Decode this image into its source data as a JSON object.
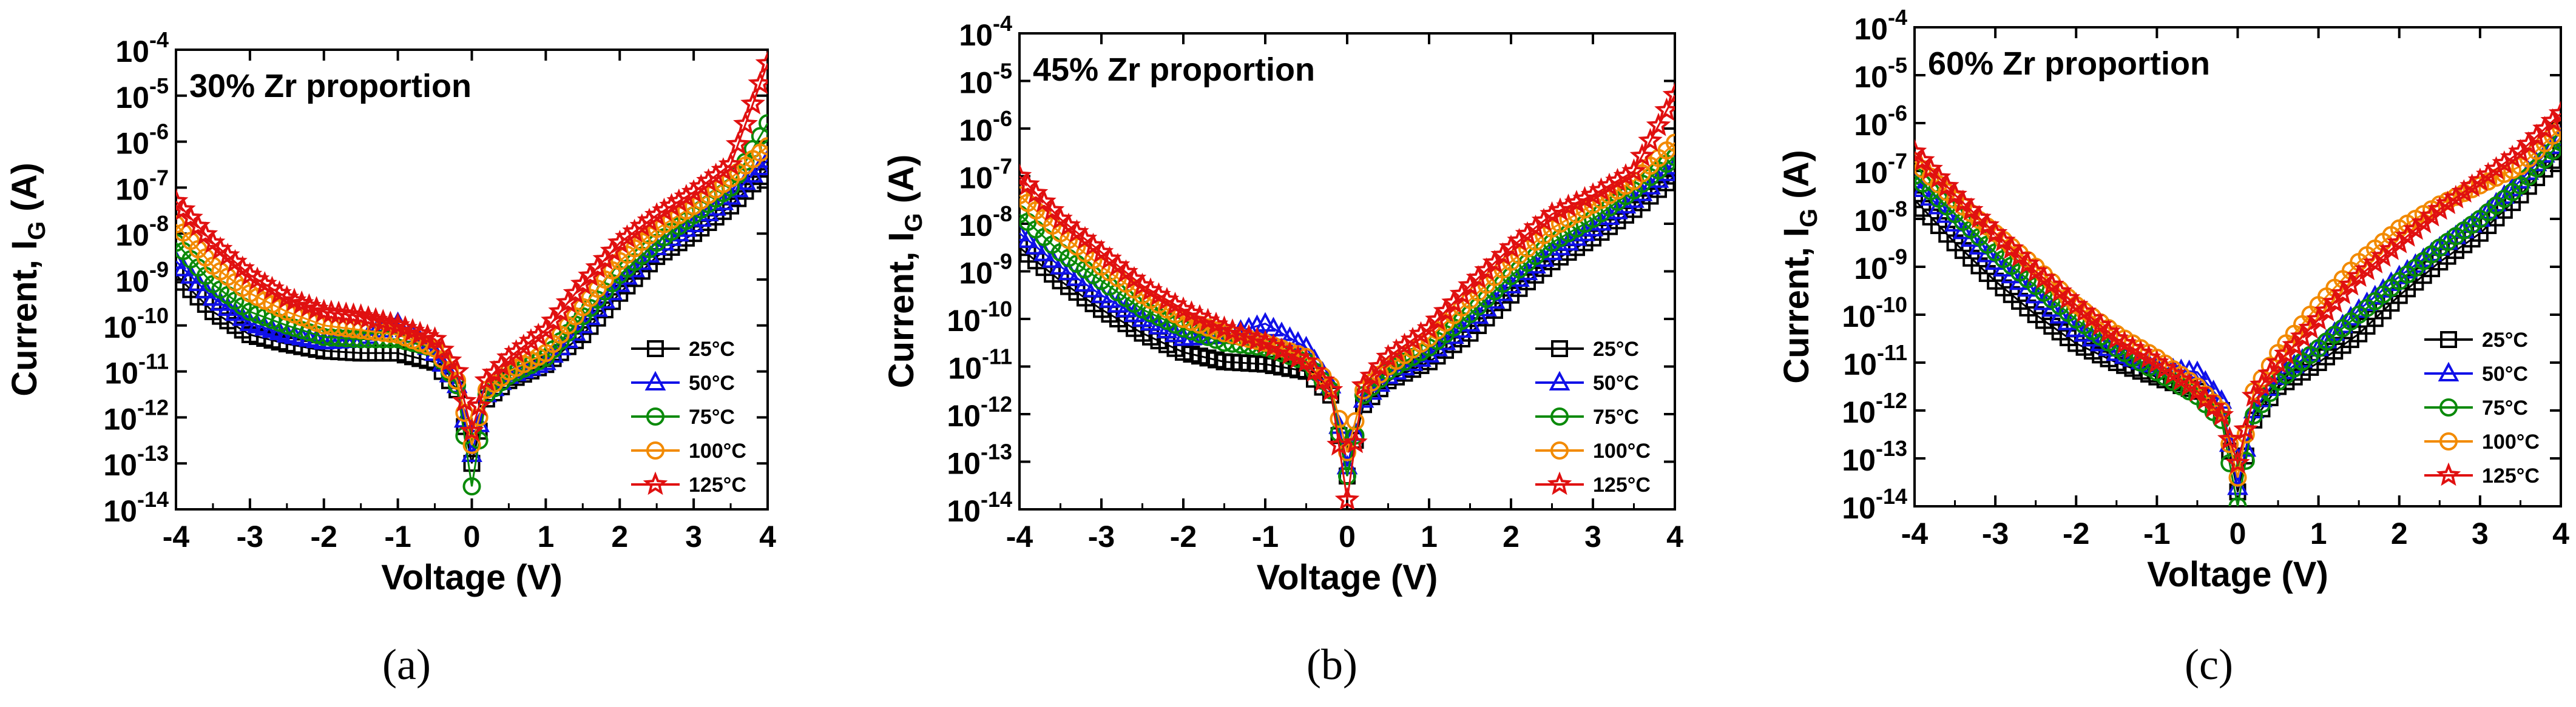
{
  "chart_data": [
    {
      "type": "line",
      "title": "30% Zr proportion",
      "caption": "(a)",
      "xlabel": "Voltage (V)",
      "ylabel_main": "Current, I",
      "ylabel_sub": "G",
      "ylabel_unit": " (A)",
      "xlim": [
        -4,
        4
      ],
      "ylim_exp": [
        -14,
        -4
      ],
      "xticks": [
        "-4",
        "-3",
        "-2",
        "-1",
        "0",
        "1",
        "2",
        "3",
        "4"
      ],
      "yticks": [
        {
          "base": "10",
          "exp": "-14"
        },
        {
          "base": "10",
          "exp": "-13"
        },
        {
          "base": "10",
          "exp": "-12"
        },
        {
          "base": "10",
          "exp": "-11"
        },
        {
          "base": "10",
          "exp": "-10"
        },
        {
          "base": "10",
          "exp": "-9"
        },
        {
          "base": "10",
          "exp": "-8"
        },
        {
          "base": "10",
          "exp": "-7"
        },
        {
          "base": "10",
          "exp": "-6"
        },
        {
          "base": "10",
          "exp": "-5"
        },
        {
          "base": "10",
          "exp": "-4"
        }
      ],
      "x": [
        -4,
        -3.5,
        -3,
        -2.5,
        -2,
        -1.5,
        -1,
        -0.5,
        -0.2,
        0,
        0.2,
        0.5,
        1,
        1.5,
        2,
        2.5,
        3,
        3.5,
        4
      ],
      "series": [
        {
          "name": "25°C",
          "symbol": "square",
          "color": "#000000",
          "log_values": [
            -8.9,
            -9.7,
            -10.2,
            -10.4,
            -10.55,
            -10.6,
            -10.6,
            -10.8,
            -11.4,
            -13,
            -11.6,
            -11.2,
            -10.85,
            -10.2,
            -9.3,
            -8.5,
            -8.0,
            -7.4,
            -6.6
          ]
        },
        {
          "name": "50°C",
          "symbol": "triangle",
          "color": "#1010e8",
          "log_values": [
            -8.6,
            -9.4,
            -9.95,
            -10.2,
            -10.35,
            -10.3,
            -9.95,
            -10.6,
            -11.3,
            -12.8,
            -11.5,
            -11.1,
            -10.8,
            -10.0,
            -9.1,
            -8.3,
            -7.8,
            -7.2,
            -6.4
          ]
        },
        {
          "name": "75°C",
          "symbol": "circle",
          "color": "#0a8a0a",
          "log_values": [
            -8.2,
            -9.1,
            -9.7,
            -10.0,
            -10.25,
            -10.3,
            -10.3,
            -10.5,
            -11.3,
            -13.5,
            -11.5,
            -11.1,
            -10.7,
            -9.8,
            -8.9,
            -8.2,
            -7.6,
            -7.0,
            -5.6
          ]
        },
        {
          "name": "100°C",
          "symbol": "circle",
          "color": "#f28a00",
          "log_values": [
            -7.8,
            -8.7,
            -9.3,
            -9.7,
            -10.0,
            -10.1,
            -10.2,
            -10.5,
            -11.2,
            -12.6,
            -11.4,
            -11.0,
            -10.6,
            -9.6,
            -8.6,
            -7.9,
            -7.4,
            -6.8,
            -6.1
          ]
        },
        {
          "name": "125°C",
          "symbol": "star",
          "color": "#e01010",
          "log_values": [
            -7.3,
            -8.2,
            -8.9,
            -9.4,
            -9.7,
            -9.8,
            -10.0,
            -10.3,
            -11.0,
            -12.3,
            -11.2,
            -10.7,
            -10.1,
            -9.1,
            -8.2,
            -7.6,
            -7.1,
            -6.5,
            -4.3
          ]
        }
      ]
    },
    {
      "type": "line",
      "title": "45% Zr proportion",
      "caption": "(b)",
      "xlabel": "Voltage (V)",
      "ylabel_main": "Current, I",
      "ylabel_sub": "G",
      "ylabel_unit": " (A)",
      "xlim": [
        -4,
        4
      ],
      "ylim_exp": [
        -14,
        -4
      ],
      "xticks": [
        "-4",
        "-3",
        "-2",
        "-1",
        "0",
        "1",
        "2",
        "3",
        "4"
      ],
      "yticks": [
        {
          "base": "10",
          "exp": "-14"
        },
        {
          "base": "10",
          "exp": "-13"
        },
        {
          "base": "10",
          "exp": "-12"
        },
        {
          "base": "10",
          "exp": "-11"
        },
        {
          "base": "10",
          "exp": "-10"
        },
        {
          "base": "10",
          "exp": "-9"
        },
        {
          "base": "10",
          "exp": "-8"
        },
        {
          "base": "10",
          "exp": "-7"
        },
        {
          "base": "10",
          "exp": "-6"
        },
        {
          "base": "10",
          "exp": "-5"
        },
        {
          "base": "10",
          "exp": "-4"
        }
      ],
      "x": [
        -4,
        -3.5,
        -3,
        -2.5,
        -2,
        -1.5,
        -1,
        -0.5,
        -0.2,
        0,
        0.2,
        0.5,
        1,
        1.5,
        2,
        2.5,
        3,
        3.5,
        4
      ],
      "series": [
        {
          "name": "25°C",
          "symbol": "square",
          "color": "#000000",
          "log_values": [
            -8.5,
            -9.2,
            -9.8,
            -10.3,
            -10.7,
            -10.9,
            -10.95,
            -11.1,
            -11.6,
            -13.3,
            -11.8,
            -11.3,
            -10.9,
            -10.3,
            -9.5,
            -8.8,
            -8.3,
            -7.7,
            -7.0
          ]
        },
        {
          "name": "50°C",
          "symbol": "triangle",
          "color": "#1010e8",
          "log_values": [
            -8.2,
            -8.9,
            -9.5,
            -10.0,
            -10.4,
            -10.35,
            -10.1,
            -10.6,
            -11.4,
            -13.1,
            -11.7,
            -11.2,
            -10.75,
            -10.1,
            -9.3,
            -8.6,
            -8.1,
            -7.5,
            -6.8
          ]
        },
        {
          "name": "75°C",
          "symbol": "circle",
          "color": "#0a8a0a",
          "log_values": [
            -7.8,
            -8.6,
            -9.2,
            -9.8,
            -10.2,
            -10.5,
            -10.6,
            -10.9,
            -11.5,
            -13.3,
            -11.6,
            -11.1,
            -10.6,
            -9.9,
            -9.1,
            -8.4,
            -7.9,
            -7.3,
            -6.6
          ]
        },
        {
          "name": "100°C",
          "symbol": "circle",
          "color": "#f28a00",
          "log_values": [
            -7.4,
            -8.2,
            -8.9,
            -9.5,
            -10.0,
            -10.3,
            -10.5,
            -10.8,
            -11.4,
            -12.8,
            -11.5,
            -11.0,
            -10.4,
            -9.6,
            -8.8,
            -8.1,
            -7.6,
            -7.1,
            -6.3
          ]
        },
        {
          "name": "125°C",
          "symbol": "star",
          "color": "#e01010",
          "log_values": [
            -7.0,
            -7.9,
            -8.6,
            -9.3,
            -9.8,
            -10.2,
            -10.5,
            -10.9,
            -11.5,
            -13.8,
            -11.4,
            -10.8,
            -10.2,
            -9.3,
            -8.5,
            -7.8,
            -7.4,
            -6.9,
            -5.3
          ]
        }
      ]
    },
    {
      "type": "line",
      "title": "60% Zr proportion",
      "caption": "(c)",
      "xlabel": "Voltage (V)",
      "ylabel_main": "Current, I",
      "ylabel_sub": "G",
      "ylabel_unit": " (A)",
      "xlim": [
        -4,
        4
      ],
      "ylim_exp": [
        -14,
        -4
      ],
      "xticks": [
        "-4",
        "-3",
        "-2",
        "-1",
        "0",
        "1",
        "2",
        "3",
        "4"
      ],
      "yticks": [
        {
          "base": "10",
          "exp": "-14"
        },
        {
          "base": "10",
          "exp": "-13"
        },
        {
          "base": "10",
          "exp": "-12"
        },
        {
          "base": "10",
          "exp": "-11"
        },
        {
          "base": "10",
          "exp": "-10"
        },
        {
          "base": "10",
          "exp": "-9"
        },
        {
          "base": "10",
          "exp": "-8"
        },
        {
          "base": "10",
          "exp": "-7"
        },
        {
          "base": "10",
          "exp": "-6"
        },
        {
          "base": "10",
          "exp": "-5"
        },
        {
          "base": "10",
          "exp": "-4"
        }
      ],
      "x": [
        -4,
        -3.5,
        -3,
        -2.5,
        -2,
        -1.5,
        -1,
        -0.5,
        -0.2,
        0,
        0.2,
        0.5,
        1,
        1.5,
        2,
        2.5,
        3,
        3.5,
        4
      ],
      "series": [
        {
          "name": "25°C",
          "symbol": "square",
          "color": "#000000",
          "log_values": [
            -7.6,
            -8.5,
            -9.3,
            -10.0,
            -10.6,
            -11.0,
            -11.3,
            -11.6,
            -12.0,
            -13.7,
            -12.2,
            -11.5,
            -11.0,
            -10.4,
            -9.6,
            -8.9,
            -8.3,
            -7.5,
            -6.6
          ]
        },
        {
          "name": "50°C",
          "symbol": "triangle",
          "color": "#1010e8",
          "log_values": [
            -7.2,
            -8.1,
            -8.9,
            -9.6,
            -10.3,
            -10.8,
            -11.1,
            -11.2,
            -11.8,
            -13.6,
            -12.0,
            -11.3,
            -10.7,
            -9.9,
            -9.2,
            -8.6,
            -8.0,
            -7.2,
            -6.3
          ]
        },
        {
          "name": "75°C",
          "symbol": "circle",
          "color": "#0a8a0a",
          "log_values": [
            -7.1,
            -7.9,
            -8.7,
            -9.4,
            -10.1,
            -10.7,
            -11.2,
            -11.7,
            -12.2,
            -14,
            -12.1,
            -11.4,
            -10.7,
            -10.0,
            -9.3,
            -8.6,
            -8.0,
            -7.3,
            -6.4
          ]
        },
        {
          "name": "100°C",
          "symbol": "circle",
          "color": "#f28a00",
          "log_values": [
            -6.8,
            -7.6,
            -8.3,
            -9.0,
            -9.8,
            -10.4,
            -10.9,
            -11.5,
            -12.0,
            -13.4,
            -11.6,
            -10.8,
            -9.8,
            -8.9,
            -8.2,
            -7.7,
            -7.3,
            -6.9,
            -6.1
          ]
        },
        {
          "name": "125°C",
          "symbol": "star",
          "color": "#e01010",
          "log_values": [
            -6.6,
            -7.5,
            -8.3,
            -9.1,
            -9.8,
            -10.5,
            -11.0,
            -11.6,
            -12.1,
            -13.1,
            -11.7,
            -11.0,
            -10.1,
            -9.2,
            -8.5,
            -7.8,
            -7.2,
            -6.6,
            -5.8
          ]
        }
      ]
    }
  ]
}
